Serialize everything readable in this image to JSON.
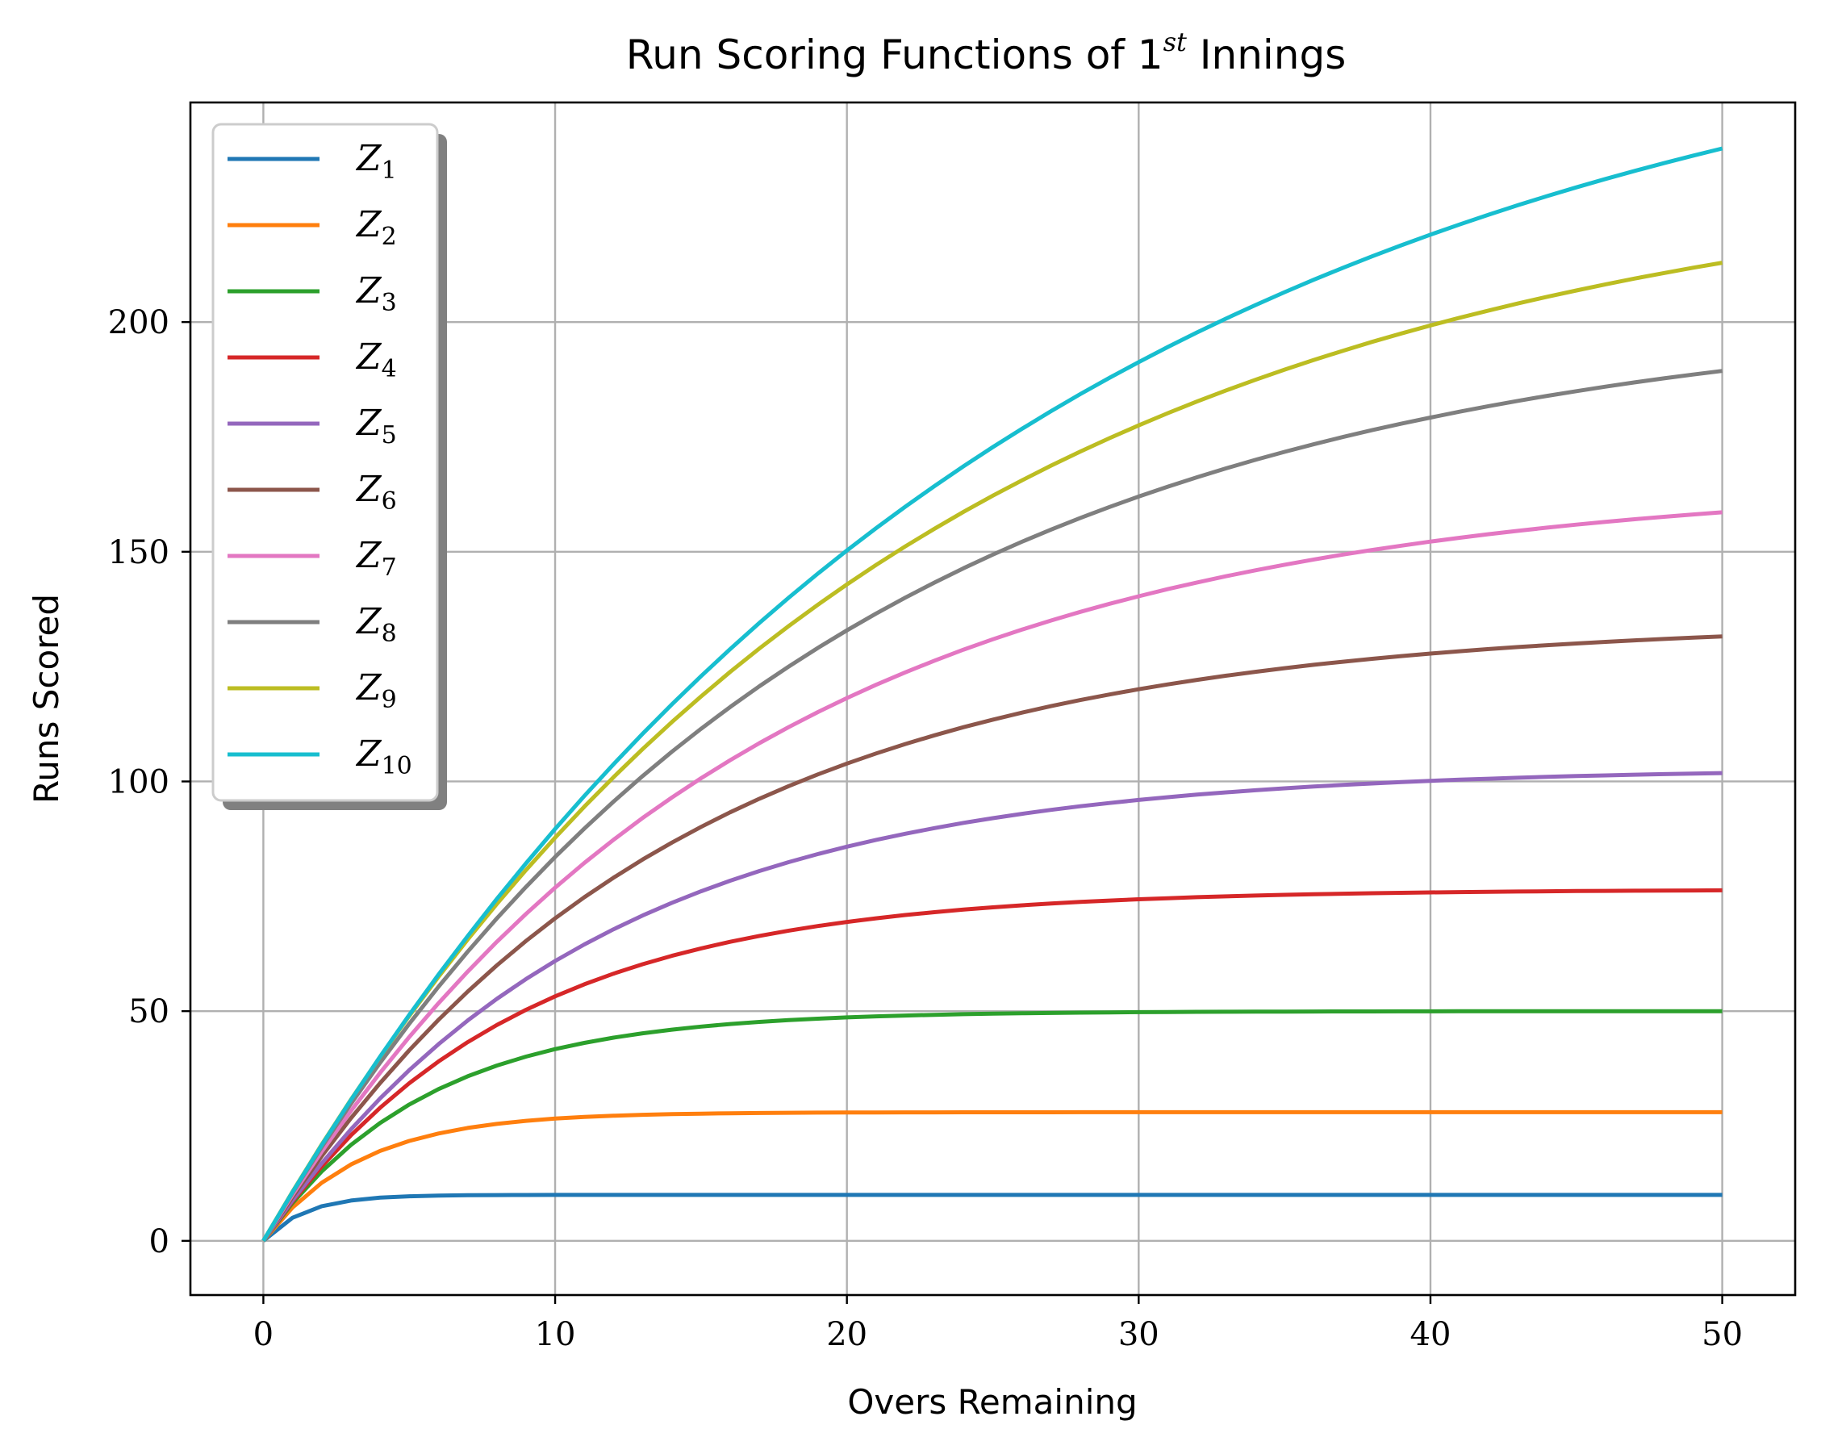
{
  "chart_data": {
    "type": "line",
    "title": {
      "text": "Run Scoring Functions of 1",
      "sup": "st",
      "suffix": " Innings"
    },
    "xlabel": "Overs Remaining",
    "ylabel": "Runs Scored",
    "xlim": [
      -2.5,
      52.5
    ],
    "ylim": [
      -11.8,
      247.8
    ],
    "xticks": [
      0,
      10,
      20,
      30,
      40,
      50
    ],
    "yticks": [
      0,
      50,
      100,
      150,
      200
    ],
    "grid": true,
    "legend_position": "top-left",
    "x": [
      0,
      1,
      2,
      3,
      4,
      5,
      6,
      7,
      8,
      9,
      10,
      11,
      12,
      13,
      14,
      15,
      16,
      17,
      18,
      19,
      20,
      21,
      22,
      23,
      24,
      25,
      26,
      27,
      28,
      29,
      30,
      31,
      32,
      33,
      34,
      35,
      36,
      37,
      38,
      39,
      40,
      41,
      42,
      43,
      44,
      45,
      46,
      47,
      48,
      49,
      50
    ],
    "series": [
      {
        "name": "Z",
        "sub": "1",
        "color": "#1f77b4",
        "asymptote": 10.0,
        "rate": 0.7
      },
      {
        "name": "Z",
        "sub": "2",
        "color": "#ff7f0e",
        "asymptote": 28.0,
        "rate": 0.3
      },
      {
        "name": "Z",
        "sub": "3",
        "color": "#2ca02c",
        "asymptote": 50.0,
        "rate": 0.18
      },
      {
        "name": "Z",
        "sub": "4",
        "color": "#d62728",
        "asymptote": 76.5,
        "rate": 0.119
      },
      {
        "name": "Z",
        "sub": "5",
        "color": "#9467bd",
        "asymptote": 103.0,
        "rate": 0.0895
      },
      {
        "name": "Z",
        "sub": "6",
        "color": "#8c564b",
        "asymptote": 135.0,
        "rate": 0.0734
      },
      {
        "name": "Z",
        "sub": "7",
        "color": "#e377c2",
        "asymptote": 166.0,
        "rate": 0.0622
      },
      {
        "name": "Z",
        "sub": "8",
        "color": "#7f7f7f",
        "asymptote": 204.0,
        "rate": 0.0527
      },
      {
        "name": "Z",
        "sub": "9",
        "color": "#bcbd22",
        "asymptote": 236.0,
        "rate": 0.0465
      },
      {
        "name": "Z",
        "sub": "10",
        "color": "#17becf",
        "asymptote": 277.0,
        "rate": 0.0391
      }
    ]
  }
}
